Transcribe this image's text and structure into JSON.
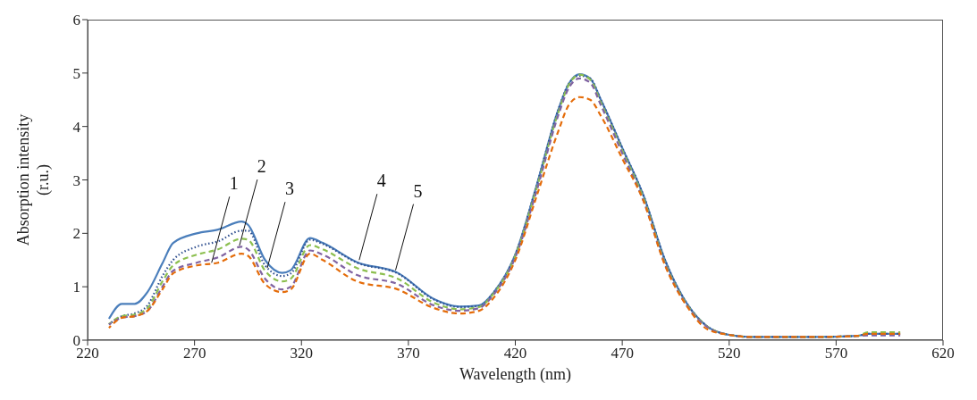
{
  "chart_data": {
    "type": "line",
    "xlabel": "Wavelength (nm)",
    "ylabel": "Absorption intensity (r.u.)",
    "x": [
      230,
      236,
      242,
      248,
      255,
      260,
      271,
      281,
      292,
      295,
      303,
      311,
      315,
      324,
      330,
      346,
      365,
      382,
      394,
      403,
      410,
      420,
      430,
      440,
      445,
      450,
      455,
      460,
      470,
      480,
      490,
      500,
      510,
      520,
      530,
      560,
      580,
      585,
      600
    ],
    "series": [
      {
        "color": "#4a7ebb",
        "line_style": "solid",
        "values": [
          0.4,
          0.68,
          0.68,
          0.9,
          1.44,
          1.82,
          2.0,
          2.07,
          2.22,
          2.16,
          1.5,
          1.26,
          1.31,
          1.91,
          1.82,
          1.46,
          1.26,
          0.77,
          0.63,
          0.65,
          0.9,
          1.6,
          2.9,
          4.3,
          4.8,
          4.98,
          4.9,
          4.5,
          3.6,
          2.7,
          1.5,
          0.7,
          0.25,
          0.1,
          0.06,
          0.06,
          0.08,
          0.12,
          0.12
        ]
      },
      {
        "color": "#2f4f8f",
        "line_style": "dotted",
        "values": [
          0.3,
          0.45,
          0.5,
          0.65,
          1.2,
          1.5,
          1.75,
          1.85,
          2.05,
          2.05,
          1.4,
          1.2,
          1.25,
          1.88,
          1.8,
          1.45,
          1.25,
          0.76,
          0.62,
          0.64,
          0.9,
          1.6,
          2.9,
          4.3,
          4.8,
          4.95,
          4.9,
          4.5,
          3.6,
          2.7,
          1.5,
          0.7,
          0.25,
          0.1,
          0.06,
          0.06,
          0.08,
          0.12,
          0.12
        ]
      },
      {
        "color": "#8cbf4f",
        "line_style": "dashed",
        "values": [
          0.3,
          0.45,
          0.48,
          0.6,
          1.1,
          1.4,
          1.6,
          1.7,
          1.9,
          1.88,
          1.3,
          1.1,
          1.15,
          1.78,
          1.7,
          1.35,
          1.15,
          0.7,
          0.58,
          0.62,
          0.88,
          1.58,
          2.85,
          4.25,
          4.78,
          4.97,
          4.88,
          4.45,
          3.55,
          2.65,
          1.45,
          0.68,
          0.25,
          0.1,
          0.06,
          0.06,
          0.08,
          0.15,
          0.15
        ]
      },
      {
        "color": "#8064a2",
        "line_style": "dashed",
        "values": [
          0.29,
          0.42,
          0.45,
          0.55,
          1.0,
          1.3,
          1.45,
          1.55,
          1.75,
          1.7,
          1.15,
          0.95,
          1.0,
          1.68,
          1.6,
          1.22,
          1.05,
          0.65,
          0.55,
          0.6,
          0.86,
          1.55,
          2.8,
          4.2,
          4.72,
          4.9,
          4.82,
          4.4,
          3.5,
          2.6,
          1.42,
          0.66,
          0.24,
          0.1,
          0.06,
          0.06,
          0.08,
          0.09,
          0.09
        ]
      },
      {
        "color": "#e46c0a",
        "line_style": "dashed",
        "values": [
          0.23,
          0.42,
          0.45,
          0.55,
          0.95,
          1.25,
          1.4,
          1.45,
          1.62,
          1.58,
          1.05,
          0.9,
          0.95,
          1.62,
          1.5,
          1.1,
          0.95,
          0.6,
          0.5,
          0.55,
          0.8,
          1.5,
          2.7,
          3.9,
          4.4,
          4.55,
          4.5,
          4.2,
          3.4,
          2.6,
          1.4,
          0.65,
          0.2,
          0.1,
          0.06,
          0.06,
          0.08,
          0.12,
          0.12
        ]
      }
    ],
    "xlim": [
      220,
      620
    ],
    "xticks": [
      220,
      270,
      320,
      370,
      420,
      470,
      520,
      570,
      620
    ],
    "ylim": [
      0,
      6
    ],
    "yticks": [
      0,
      1,
      2,
      3,
      4,
      5,
      6
    ],
    "grid": false,
    "legend": false,
    "marker": "none",
    "annotations": [
      {
        "text": "1",
        "x": 278,
        "y": 1.45
      },
      {
        "text": "2",
        "x": 291,
        "y": 1.77
      },
      {
        "text": "3",
        "x": 304,
        "y": 1.35
      },
      {
        "text": "4",
        "x": 347,
        "y": 1.5
      },
      {
        "text": "5",
        "x": 364,
        "y": 1.31
      }
    ]
  }
}
